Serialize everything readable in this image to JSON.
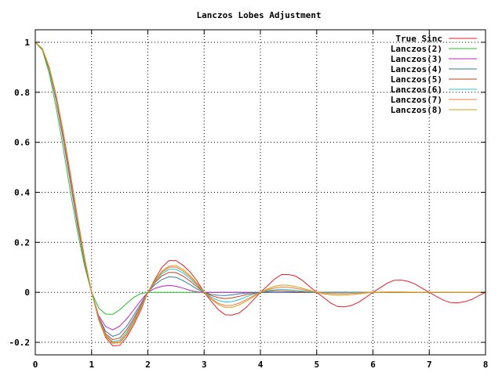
{
  "chart_data": {
    "type": "line",
    "title": "Lanczos Lobes Adjustment",
    "xlabel": "",
    "ylabel": "",
    "xlim": [
      0,
      8
    ],
    "ylim": [
      -0.25,
      1.05
    ],
    "xticks": [
      0,
      1,
      2,
      3,
      4,
      5,
      6,
      7,
      8
    ],
    "xtick_labels": [
      "0",
      "1",
      "2",
      "3",
      "4",
      "5",
      "6",
      "7",
      "8"
    ],
    "yticks": [
      -0.2,
      0,
      0.2,
      0.4,
      0.6,
      0.8,
      1
    ],
    "ytick_labels": [
      "-0.2",
      "0",
      "0.2",
      "0.4",
      "0.6",
      "0.8",
      "1"
    ],
    "grid": true,
    "legend_position": "top-right",
    "x": [
      0,
      0.125,
      0.25,
      0.375,
      0.5,
      0.625,
      0.75,
      0.875,
      1,
      1.125,
      1.25,
      1.375,
      1.5,
      1.625,
      1.75,
      1.875,
      2,
      2.125,
      2.25,
      2.375,
      2.5,
      2.625,
      2.75,
      2.875,
      3,
      3.125,
      3.25,
      3.375,
      3.5,
      3.625,
      3.75,
      3.875,
      4,
      4.125,
      4.25,
      4.375,
      4.5,
      4.625,
      4.75,
      4.875,
      5,
      5.125,
      5.25,
      5.375,
      5.5,
      5.625,
      5.75,
      5.875,
      6,
      6.125,
      6.25,
      6.375,
      6.5,
      6.625,
      6.75,
      6.875,
      7,
      7.125,
      7.25,
      7.375,
      7.5,
      7.625,
      7.75,
      7.875,
      8
    ],
    "series": [
      {
        "name": "True Sinc",
        "color": "#e8202a",
        "values": [
          1,
          0.975,
          0.9,
          0.784,
          0.637,
          0.473,
          0.3,
          0.139,
          0,
          -0.108,
          -0.18,
          -0.214,
          -0.212,
          -0.179,
          -0.129,
          -0.071,
          0,
          0.052,
          0.1,
          0.127,
          0.127,
          0.108,
          0.082,
          0.045,
          0,
          -0.035,
          -0.069,
          -0.09,
          -0.091,
          -0.082,
          -0.06,
          -0.03,
          0,
          0.026,
          0.053,
          0.071,
          0.071,
          0.065,
          0.047,
          0.023,
          0,
          -0.021,
          -0.043,
          -0.057,
          -0.058,
          -0.052,
          -0.039,
          -0.02,
          0,
          0.018,
          0.036,
          0.048,
          0.049,
          0.044,
          0.033,
          0.016,
          0,
          -0.016,
          -0.031,
          -0.041,
          -0.042,
          -0.038,
          -0.029,
          -0.014,
          0
        ]
      },
      {
        "name": "Lanczos(2)",
        "color": "#20c020",
        "values": [
          1,
          0.969,
          0.874,
          0.735,
          0.573,
          0.402,
          0.243,
          0.106,
          0,
          -0.062,
          -0.087,
          -0.088,
          -0.07,
          -0.044,
          -0.02,
          -0.005,
          0,
          0,
          0,
          0,
          0,
          0,
          0,
          0,
          0,
          0,
          0,
          0,
          0,
          0,
          0,
          0,
          0,
          0,
          0,
          0,
          0,
          0,
          0,
          0,
          0,
          0,
          0,
          0,
          0,
          0,
          0,
          0,
          0,
          0,
          0,
          0,
          0,
          0,
          0,
          0,
          0,
          0,
          0,
          0,
          0,
          0,
          0,
          0,
          0
        ]
      },
      {
        "name": "Lanczos(3)",
        "color": "#c020c0",
        "values": [
          1,
          0.972,
          0.889,
          0.764,
          0.608,
          0.44,
          0.27,
          0.122,
          0,
          -0.093,
          -0.137,
          -0.15,
          -0.135,
          -0.106,
          -0.07,
          -0.033,
          0,
          0.016,
          0.024,
          0.028,
          0.024,
          0.017,
          0.008,
          0.002,
          0,
          0,
          0,
          0,
          0,
          0,
          0,
          0,
          0,
          0,
          0,
          0,
          0,
          0,
          0,
          0,
          0,
          0,
          0,
          0,
          0,
          0,
          0,
          0,
          0,
          0,
          0,
          0,
          0,
          0,
          0,
          0,
          0,
          0,
          0,
          0,
          0,
          0,
          0,
          0,
          0
        ]
      },
      {
        "name": "Lanczos(4)",
        "color": "#3a7aa0",
        "values": [
          1,
          0.973,
          0.893,
          0.773,
          0.62,
          0.454,
          0.281,
          0.128,
          0,
          -0.098,
          -0.156,
          -0.176,
          -0.166,
          -0.135,
          -0.091,
          -0.045,
          0,
          0.031,
          0.051,
          0.062,
          0.06,
          0.047,
          0.031,
          0.013,
          0,
          -0.008,
          -0.012,
          -0.013,
          -0.01,
          -0.006,
          -0.003,
          -0.001,
          0,
          0,
          0,
          0,
          0,
          0,
          0,
          0,
          0,
          0,
          0,
          0,
          0,
          0,
          0,
          0,
          0,
          0,
          0,
          0,
          0,
          0,
          0,
          0,
          0,
          0,
          0,
          0,
          0,
          0,
          0,
          0,
          0
        ]
      },
      {
        "name": "Lanczos(5)",
        "color": "#c04020",
        "values": [
          1,
          0.974,
          0.896,
          0.776,
          0.625,
          0.46,
          0.288,
          0.131,
          0,
          -0.101,
          -0.166,
          -0.189,
          -0.183,
          -0.149,
          -0.103,
          -0.053,
          0,
          0.039,
          0.066,
          0.08,
          0.079,
          0.065,
          0.045,
          0.022,
          0,
          -0.013,
          -0.021,
          -0.025,
          -0.022,
          -0.016,
          -0.009,
          -0.004,
          0,
          0.004,
          0.006,
          0.006,
          0.005,
          0.003,
          0.002,
          0.001,
          0,
          0,
          0,
          0,
          0,
          0,
          0,
          0,
          0,
          0,
          0,
          0,
          0,
          0,
          0,
          0,
          0,
          0,
          0,
          0,
          0,
          0,
          0,
          0,
          0
        ]
      },
      {
        "name": "Lanczos(6)",
        "color": "#20c8c8",
        "values": [
          1,
          0.974,
          0.897,
          0.779,
          0.628,
          0.463,
          0.291,
          0.133,
          0,
          -0.103,
          -0.171,
          -0.197,
          -0.192,
          -0.159,
          -0.111,
          -0.058,
          0,
          0.043,
          0.075,
          0.092,
          0.092,
          0.077,
          0.055,
          0.028,
          0,
          -0.019,
          -0.033,
          -0.039,
          -0.037,
          -0.029,
          -0.018,
          -0.008,
          0,
          0.006,
          0.01,
          0.012,
          0.011,
          0.008,
          0.005,
          0.002,
          0,
          -0.001,
          -0.002,
          -0.002,
          -0.002,
          -0.001,
          -0.001,
          0,
          0,
          0,
          0,
          0,
          0,
          0,
          0,
          0,
          0,
          0,
          0,
          0,
          0,
          0,
          0,
          0,
          0
        ]
      },
      {
        "name": "Lanczos(7)",
        "color": "#f07840",
        "values": [
          1,
          0.974,
          0.898,
          0.78,
          0.63,
          0.465,
          0.293,
          0.134,
          0,
          -0.104,
          -0.173,
          -0.201,
          -0.198,
          -0.166,
          -0.117,
          -0.061,
          0,
          0.046,
          0.081,
          0.1,
          0.101,
          0.085,
          0.062,
          0.032,
          0,
          -0.024,
          -0.044,
          -0.053,
          -0.052,
          -0.043,
          -0.029,
          -0.014,
          0,
          0.01,
          0.017,
          0.021,
          0.02,
          0.016,
          0.011,
          0.005,
          0,
          -0.003,
          -0.005,
          -0.006,
          -0.006,
          -0.004,
          -0.003,
          -0.001,
          0,
          0,
          0,
          0,
          0,
          0,
          0,
          0,
          0,
          0,
          0,
          0,
          0,
          0,
          0,
          0,
          0
        ]
      },
      {
        "name": "Lanczos(8)",
        "color": "#d8a010",
        "values": [
          1,
          0.974,
          0.898,
          0.781,
          0.631,
          0.466,
          0.294,
          0.135,
          0,
          -0.105,
          -0.175,
          -0.204,
          -0.202,
          -0.17,
          -0.12,
          -0.063,
          0,
          0.047,
          0.085,
          0.105,
          0.107,
          0.092,
          0.067,
          0.035,
          0,
          -0.027,
          -0.049,
          -0.06,
          -0.06,
          -0.05,
          -0.035,
          -0.018,
          0,
          0.013,
          0.024,
          0.029,
          0.028,
          0.023,
          0.016,
          0.008,
          0,
          -0.006,
          -0.01,
          -0.012,
          -0.011,
          -0.009,
          -0.006,
          -0.003,
          0,
          0.001,
          0.002,
          0.002,
          0.002,
          0.001,
          0.001,
          0,
          0,
          0,
          0,
          0,
          0,
          0,
          0,
          0,
          0
        ]
      }
    ]
  }
}
